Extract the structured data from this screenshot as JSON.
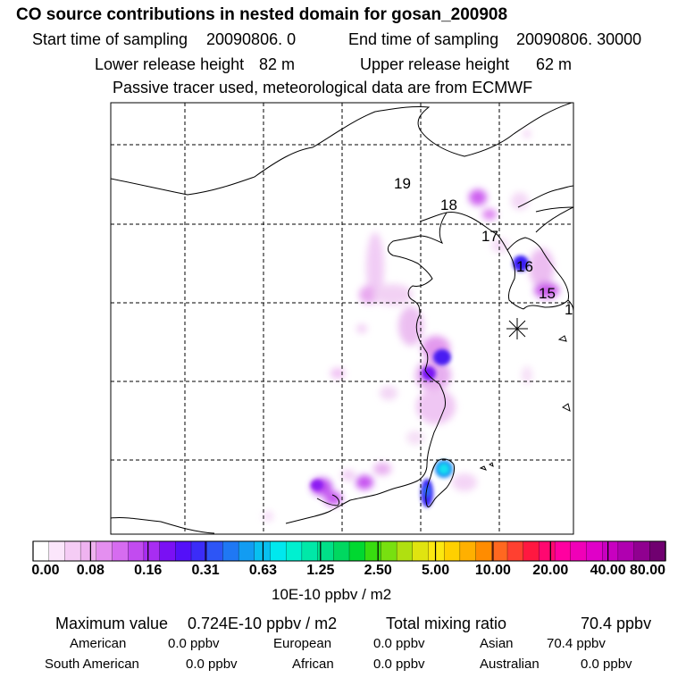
{
  "title": "CO  source contributions in nested domain for gosan_200908",
  "header": {
    "start_label": "Start time of sampling",
    "start_value": "20090806.     0",
    "end_label": "End time of sampling",
    "end_value": "20090806. 30000",
    "lower_label": "Lower release height",
    "lower_value": "82 m",
    "upper_label": "Upper release height",
    "upper_value": "62 m",
    "note": "Passive tracer used, meteorological data are from ECMWF"
  },
  "map": {
    "trajectory_labels": [
      "19",
      "18",
      "17",
      "16",
      "15",
      "1"
    ],
    "receptor_marker": "asterisk-icon",
    "colors": {
      "coast": "#000000",
      "grid": "#000000"
    }
  },
  "colorbar": {
    "ticks": [
      "0.00",
      "0.08",
      "0.16",
      "0.31",
      "0.63",
      "1.25",
      "2.50",
      "5.00",
      "10.00",
      "20.00",
      "40.00",
      "80.00"
    ],
    "unit": "10E-10 ppbv / m2",
    "colors": [
      "#ffffff",
      "#fbe6fb",
      "#f5ccf5",
      "#efb3f0",
      "#e48ff0",
      "#d66cf0",
      "#c24bf0",
      "#a82df2",
      "#7a10f4",
      "#5410f8",
      "#3b2cf8",
      "#2d55f6",
      "#1f78f4",
      "#129cf2",
      "#08c0f0",
      "#00e8ee",
      "#00f0d0",
      "#00e8a8",
      "#00e088",
      "#00d860",
      "#00d830",
      "#38dc10",
      "#78e010",
      "#b0e010",
      "#e0e410",
      "#fce810",
      "#ffd000",
      "#ffb000",
      "#ff8c00",
      "#ff6820",
      "#ff4030",
      "#ff1840",
      "#ff0870",
      "#ff00a0",
      "#f000b8",
      "#e000c8",
      "#c800c0",
      "#b000b0",
      "#900090",
      "#700070"
    ]
  },
  "stats": {
    "max_label": "Maximum value",
    "max_value": "0.724E-10 ppbv / m2",
    "total_label": "Total mixing ratio",
    "total_value": "70.4 ppbv",
    "regions": [
      {
        "name": "American",
        "value": "0.0 ppbv"
      },
      {
        "name": "European",
        "value": "0.0 ppbv"
      },
      {
        "name": "Asian",
        "value": "70.4 ppbv"
      },
      {
        "name": "South American",
        "value": "0.0 ppbv"
      },
      {
        "name": "African",
        "value": "0.0 ppbv"
      },
      {
        "name": "Australian",
        "value": "0.0 ppbv"
      }
    ]
  }
}
